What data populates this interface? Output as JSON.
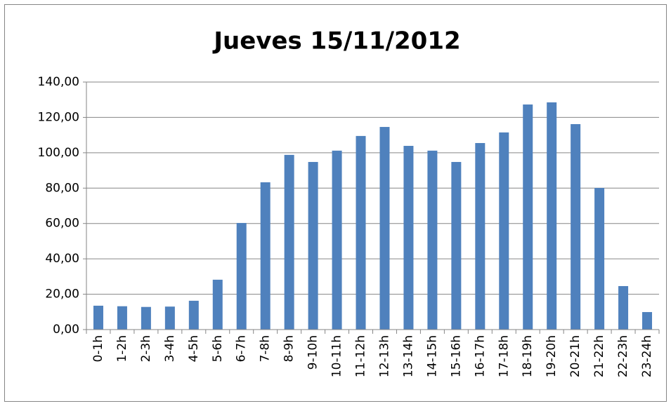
{
  "chart_data": {
    "type": "bar",
    "title": "Jueves 15/11/2012",
    "categories": [
      "0-1h",
      "1-2h",
      "2-3h",
      "3-4h",
      "4-5h",
      "5-6h",
      "6-7h",
      "7-8h",
      "8-9h",
      "9-10h",
      "10-11h",
      "11-12h",
      "12-13h",
      "13-14h",
      "14-15h",
      "15-16h",
      "16-17h",
      "17-18h",
      "18-19h",
      "19-20h",
      "20-21h",
      "21-22h",
      "22-23h",
      "23-24h"
    ],
    "values": [
      13.5,
      13.2,
      12.8,
      13,
      16.3,
      28.2,
      60.3,
      83.3,
      98.8,
      94.8,
      101.2,
      109.5,
      114.6,
      103.9,
      101.2,
      94.8,
      105.5,
      111.5,
      127.3,
      128.5,
      116.2,
      80.1,
      24.6,
      9.9
    ],
    "color": "#4f81bd",
    "ylim": [
      0,
      140
    ],
    "yticks": [
      {
        "value": 0,
        "label": "0,00"
      },
      {
        "value": 20,
        "label": "20,00"
      },
      {
        "value": 40,
        "label": "40,00"
      },
      {
        "value": 60,
        "label": "60,00"
      },
      {
        "value": 80,
        "label": "80,00"
      },
      {
        "value": 100,
        "label": "100,00"
      },
      {
        "value": 120,
        "label": "120,00"
      },
      {
        "value": 140,
        "label": "140,00"
      }
    ],
    "grid": true
  }
}
